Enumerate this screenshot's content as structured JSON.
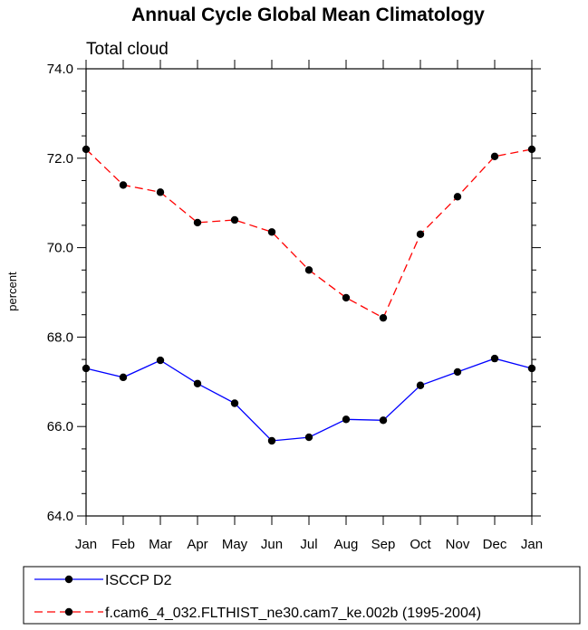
{
  "chart_data": {
    "type": "line",
    "title": "Annual Cycle Global Mean Climatology",
    "subtitle": "Total cloud",
    "xlabel": "",
    "ylabel": "percent",
    "categories": [
      "Jan",
      "Feb",
      "Mar",
      "Apr",
      "May",
      "Jun",
      "Jul",
      "Aug",
      "Sep",
      "Oct",
      "Nov",
      "Dec",
      "Jan"
    ],
    "ylim": [
      64.0,
      74.0
    ],
    "yticks": [
      "64.0",
      "66.0",
      "68.0",
      "70.0",
      "72.0",
      "74.0"
    ],
    "grid": false,
    "legend_position": "bottom",
    "series": [
      {
        "name": "ISCCP D2",
        "color": "#0000ff",
        "style": "solid",
        "values": [
          67.3,
          67.1,
          67.48,
          66.96,
          66.52,
          65.68,
          65.76,
          66.16,
          66.14,
          66.92,
          67.22,
          67.52,
          67.3
        ]
      },
      {
        "name": "f.cam6_4_032.FLTHIST_ne30.cam7_ke.002b (1995-2004)",
        "color": "#ff0000",
        "style": "dashed",
        "values": [
          72.2,
          71.4,
          71.24,
          70.56,
          70.62,
          70.35,
          69.5,
          68.88,
          68.43,
          70.3,
          71.14,
          72.04,
          72.2
        ]
      }
    ]
  }
}
